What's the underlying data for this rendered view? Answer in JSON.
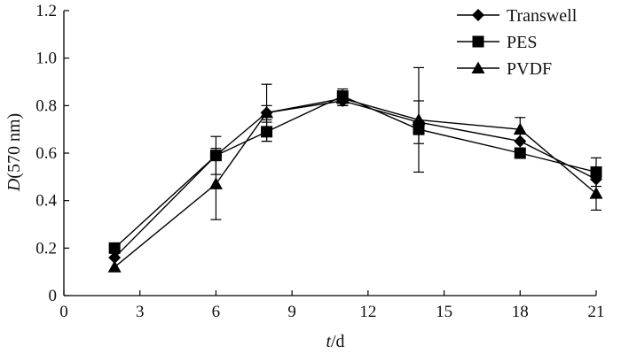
{
  "chart_data": {
    "type": "line",
    "xlabel": {
      "italic": "t",
      "rest": "/d"
    },
    "ylabel": {
      "italic": "D",
      "rest": "(570 nm)"
    },
    "xlim": [
      0,
      21
    ],
    "ylim": [
      0,
      1.2
    ],
    "xticks": [
      "0",
      "3",
      "6",
      "9",
      "12",
      "15",
      "18",
      "21"
    ],
    "yticks": [
      "0",
      "0.2",
      "0.4",
      "0.6",
      "0.8",
      "1.0",
      "1.2"
    ],
    "grid": false,
    "legend_position": "top-right",
    "series": [
      {
        "name": "Transwell",
        "marker": "diamond",
        "x": [
          2,
          6,
          8,
          11,
          14,
          18,
          21
        ],
        "y": [
          0.16,
          0.59,
          0.77,
          0.82,
          0.73,
          0.65,
          0.49
        ],
        "err": [
          0,
          0,
          0.03,
          0.02,
          0.09,
          0,
          0
        ]
      },
      {
        "name": "PES",
        "marker": "square",
        "x": [
          2,
          6,
          8,
          11,
          14,
          18,
          21
        ],
        "y": [
          0.2,
          0.59,
          0.69,
          0.84,
          0.7,
          0.6,
          0.52
        ],
        "err": [
          0,
          0.08,
          0.04,
          0.03,
          0,
          0,
          0.06
        ]
      },
      {
        "name": "PVDF",
        "marker": "triangle",
        "x": [
          2,
          6,
          8,
          11,
          14,
          18,
          21
        ],
        "y": [
          0.12,
          0.47,
          0.77,
          0.83,
          0.74,
          0.7,
          0.43
        ],
        "err": [
          0,
          0.15,
          0.12,
          0.03,
          0.22,
          0.05,
          0.07
        ]
      }
    ]
  }
}
